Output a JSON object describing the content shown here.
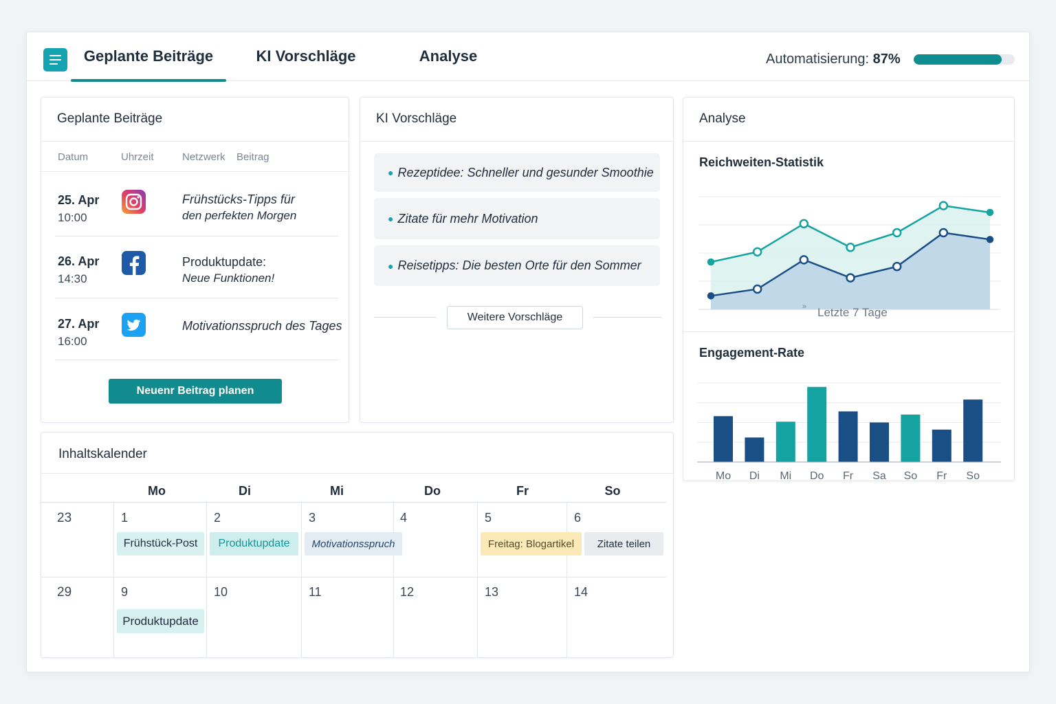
{
  "header": {
    "tabs": [
      {
        "label": "Geplante Beiträge",
        "active": true
      },
      {
        "label": "KI Vorschläge",
        "active": false
      },
      {
        "label": "Analyse",
        "active": false
      }
    ],
    "automation_label": "Automatisierung:",
    "automation_value": "87%",
    "automation_fraction": 0.87,
    "accent_color": "#128b8e"
  },
  "posts": {
    "title": "Geplante Beiträge",
    "columns": [
      "Datum",
      "Uhrzeit",
      "Netzwerk",
      "Beitrag"
    ],
    "rows": [
      {
        "date": "25. Apr",
        "time": "10:00",
        "network_icon": "instagram-icon",
        "text_1": "Frühstücks-Tipps für",
        "text_2": "den perfekten Morgen"
      },
      {
        "date": "26. Apr",
        "time": "14:30",
        "network_icon": "facebook-icon",
        "text_1": "Produktupdate:",
        "text_2": "Neue Funktionen!"
      },
      {
        "date": "27. Apr",
        "time": "16:00",
        "network_icon": "twitter-icon",
        "text_1": "Motivationsspruch des Tages",
        "text_2": ""
      }
    ],
    "button_label": "Neuenr Beitrag planen"
  },
  "suggestions": {
    "title": "KI Vorschläge",
    "items": [
      "Rezeptidee: Schneller und gesunder Smoothie",
      "Zitate für mehr Motivation",
      "Reisetipps: Die besten Orte für den Sommer"
    ],
    "more_button": "Weitere Vorschläge"
  },
  "analysis": {
    "title": "Analyse",
    "reach": {
      "title": "Reichweiten-Statistik",
      "caption": "Letzte 7 Tage",
      "caption_mark": "»"
    },
    "engagement": {
      "title": "Engagement-Rate"
    }
  },
  "chart_data": [
    {
      "type": "area",
      "title": "Reichweiten-Statistik",
      "xlabel": "Letzte 7 Tage",
      "series": [
        {
          "values": [
            4.2,
            5.1,
            7.6,
            5.5,
            6.8,
            9.2,
            8.6
          ],
          "color": "#14a3a0"
        },
        {
          "values": [
            1.2,
            1.8,
            4.4,
            2.8,
            3.8,
            6.8,
            6.2
          ],
          "color": "#1a4f86"
        }
      ],
      "ylim": [
        0,
        10
      ],
      "grid": true
    },
    {
      "type": "bar",
      "title": "Engagement-Rate",
      "categories": [
        "Mo",
        "Di",
        "Mi",
        "Do",
        "Fr",
        "Sa",
        "So",
        "Fr",
        "So"
      ],
      "values": [
        5.8,
        3.1,
        5.1,
        9.5,
        6.4,
        5.0,
        6.0,
        4.1,
        7.9
      ],
      "colors": [
        "#1a4f86",
        "#1a4f86",
        "#14a3a0",
        "#14a3a0",
        "#1a4f86",
        "#1a4f86",
        "#14a3a0",
        "#1a4f86",
        "#1a4f86"
      ],
      "ylim": [
        0,
        10
      ],
      "grid": true
    }
  ],
  "calendar": {
    "title": "Inhaltskalender",
    "days": [
      "Mo",
      "Di",
      "Mi",
      "Do",
      "Fr",
      "So"
    ],
    "weeks": [
      {
        "week": "23",
        "dates": [
          "1",
          "2",
          "3",
          "4",
          "5",
          "6"
        ],
        "events": [
          {
            "label": "Frühstück-Post",
            "style": "teal"
          },
          {
            "label": "Produktupdate",
            "style": "teal-strong"
          },
          {
            "label": "Motivationsspruch",
            "style": "blue"
          },
          {
            "label": "Freitag: Blogartikel",
            "style": "yellow"
          },
          {
            "label": "Zitate teilen",
            "style": "gray"
          }
        ]
      },
      {
        "week": "29",
        "dates": [
          "9",
          "10",
          "11",
          "12",
          "13",
          "14"
        ],
        "events": [
          {
            "label": "Produktupdate",
            "style": "teal"
          }
        ]
      }
    ]
  }
}
